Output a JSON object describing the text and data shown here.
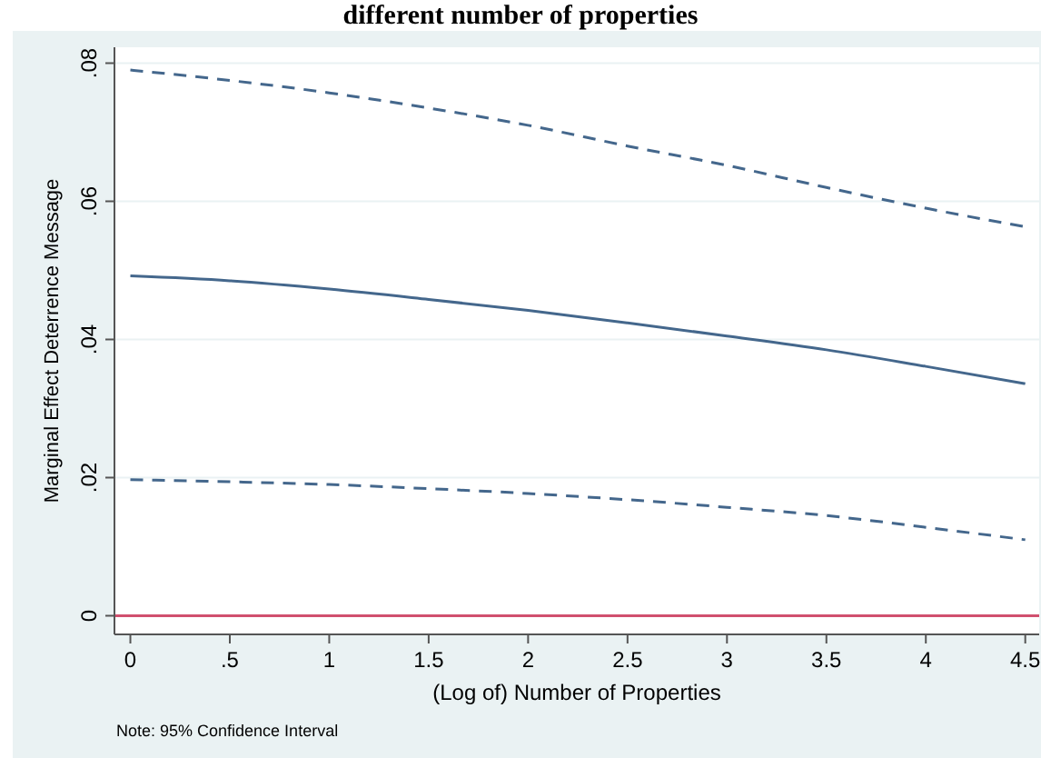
{
  "chart_data": {
    "type": "line",
    "title": "different number of properties",
    "xlabel": "(Log of) Number of Properties",
    "ylabel": "Marginal Effect Deterrence Message",
    "annotations": [
      "Note: 95% Confidence Interval"
    ],
    "x": [
      0,
      0.5,
      1,
      1.5,
      2,
      2.5,
      3,
      3.5,
      4,
      4.5
    ],
    "series": [
      {
        "color": "#44678c",
        "line_style": "dashed",
        "values": [
          0.079,
          0.0775,
          0.0757,
          0.0735,
          0.071,
          0.068,
          0.0652,
          0.062,
          0.059,
          0.0563
        ]
      },
      {
        "color": "#44678c",
        "line_style": "solid",
        "values": [
          0.0492,
          0.0485,
          0.0473,
          0.0458,
          0.0442,
          0.0424,
          0.0405,
          0.0385,
          0.0361,
          0.0336
        ]
      },
      {
        "color": "#44678c",
        "line_style": "dashed",
        "values": [
          0.0197,
          0.0194,
          0.019,
          0.0184,
          0.0177,
          0.0168,
          0.0157,
          0.0145,
          0.0128,
          0.011
        ]
      }
    ],
    "ref_lines": [
      {
        "axis": "y",
        "value": 0,
        "color": "#d0506e"
      }
    ],
    "xlim": [
      -0.08,
      4.57
    ],
    "ylim": [
      -0.0027,
      0.0823
    ],
    "xticks": [
      0,
      {
        "value": 0.5,
        "label": ".5"
      },
      1,
      1.5,
      2,
      2.5,
      3,
      3.5,
      4,
      4.5
    ],
    "yticks": [
      0,
      {
        "value": 0.02,
        "label": ".02"
      },
      {
        "value": 0.04,
        "label": ".04"
      },
      {
        "value": 0.06,
        "label": ".06"
      },
      {
        "value": 0.08,
        "label": ".08"
      }
    ],
    "grid": "y",
    "marker": "none"
  }
}
